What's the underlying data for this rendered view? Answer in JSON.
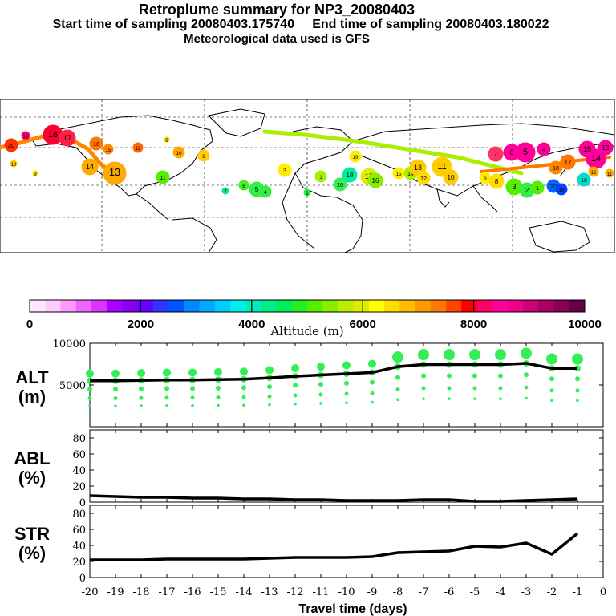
{
  "header": {
    "title": "Retroplume summary for NP3_20080403",
    "start_label": "Start time of sampling 20080403.175740",
    "end_label": "End time of sampling 20080403.180022",
    "met_label": "Meteorological data used is GFS"
  },
  "colorbar": {
    "ticks": [
      "0",
      "2000",
      "4000",
      "6000",
      "8000",
      "10000"
    ],
    "title": "Altitude (m)",
    "colors": [
      "#ffe8ff",
      "#ffccff",
      "#ff99ff",
      "#ee66ff",
      "#dd33ff",
      "#aa00ff",
      "#8800ee",
      "#6600ff",
      "#3333ff",
      "#0055ff",
      "#0088ff",
      "#00aaff",
      "#00ccff",
      "#00eeee",
      "#00eebb",
      "#00ee88",
      "#00ee55",
      "#22ee22",
      "#55ee00",
      "#88ee00",
      "#bbee00",
      "#ddee00",
      "#ffff00",
      "#ffdd00",
      "#ffbb00",
      "#ff9900",
      "#ff7700",
      "#ff4400",
      "#ff0000",
      "#ff0066",
      "#ff0099",
      "#ee0088",
      "#cc0077",
      "#aa0066",
      "#880055",
      "#660044"
    ]
  },
  "map": {
    "numbers": [
      "20",
      "19",
      "18",
      "17",
      "16",
      "15",
      "14",
      "13",
      "12",
      "11",
      "10",
      "9",
      "8",
      "7",
      "6",
      "5",
      "4",
      "3",
      "2",
      "1"
    ]
  },
  "chart_data": [
    {
      "type": "line",
      "id": "alt",
      "ylabel": "ALT\n(m)",
      "ylabel_line1": "ALT",
      "ylabel_line2": "(m)",
      "ylim": [
        0,
        10000
      ],
      "yticks": [
        "10000",
        "5000"
      ],
      "x": [
        -20,
        -19,
        -18,
        -17,
        -16,
        -15,
        -14,
        -13,
        -12,
        -11,
        -10,
        -9,
        -8,
        -7,
        -6,
        -5,
        -4,
        -3,
        -2,
        -1
      ],
      "values": [
        5500,
        5500,
        5550,
        5600,
        5600,
        5650,
        5700,
        5850,
        6050,
        6200,
        6350,
        6500,
        7200,
        7450,
        7450,
        7450,
        7450,
        7600,
        7000,
        7000
      ],
      "scatter_color": "#33ee55"
    },
    {
      "type": "line",
      "id": "abl",
      "ylabel_line1": "ABL",
      "ylabel_line2": "(%)",
      "ylim": [
        0,
        90
      ],
      "yticks": [
        "80",
        "60",
        "40",
        "20",
        "0"
      ],
      "x": [
        -20,
        -19,
        -18,
        -17,
        -16,
        -15,
        -14,
        -13,
        -12,
        -11,
        -10,
        -9,
        -8,
        -7,
        -6,
        -5,
        -4,
        -3,
        -2,
        -1
      ],
      "values": [
        8,
        7,
        6,
        6,
        5,
        5,
        4,
        4,
        3,
        3,
        2,
        2,
        2,
        3,
        3,
        1,
        1,
        2,
        3,
        4
      ]
    },
    {
      "type": "line",
      "id": "str",
      "ylabel_line1": "STR",
      "ylabel_line2": "(%)",
      "ylim": [
        0,
        90
      ],
      "yticks": [
        "80",
        "60",
        "40",
        "20",
        "0"
      ],
      "x": [
        -20,
        -19,
        -18,
        -17,
        -16,
        -15,
        -14,
        -13,
        -12,
        -11,
        -10,
        -9,
        -8,
        -7,
        -6,
        -5,
        -4,
        -3,
        -2,
        -1
      ],
      "values": [
        22,
        22,
        22,
        23,
        23,
        23,
        23,
        24,
        25,
        25,
        25,
        26,
        31,
        32,
        33,
        39,
        38,
        43,
        29,
        55
      ],
      "xlabel": "Travel time (days)",
      "xticks": [
        "-20",
        "-19",
        "-18",
        "-17",
        "-16",
        "-15",
        "-14",
        "-13",
        "-12",
        "-11",
        "-10",
        "-9",
        "-8",
        "-7",
        "-6",
        "-5",
        "-4",
        "-3",
        "-2",
        "-1",
        "0"
      ]
    }
  ]
}
